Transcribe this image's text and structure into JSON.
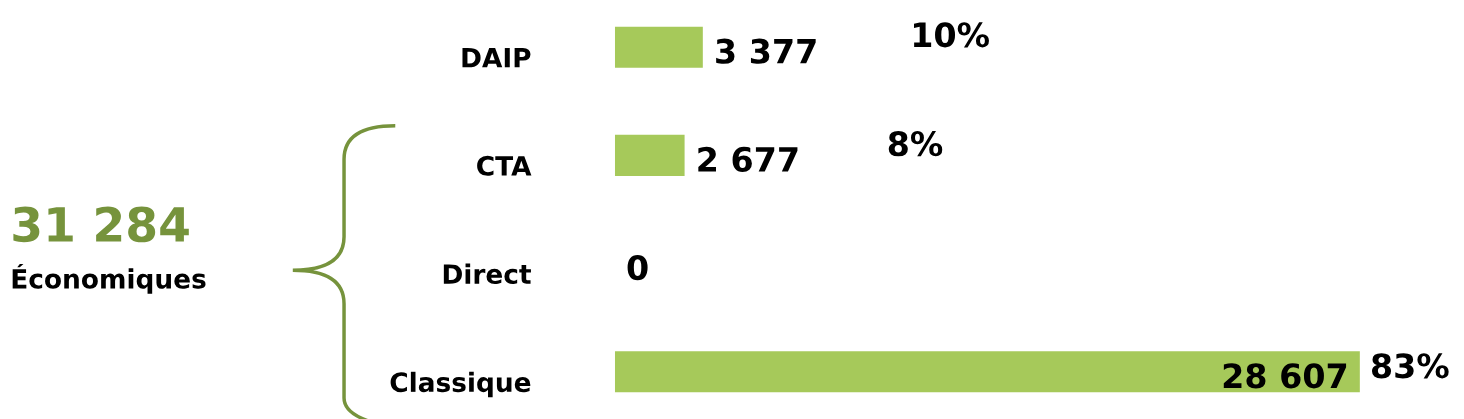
{
  "chart_data": {
    "type": "bar",
    "orientation": "horizontal",
    "categories": [
      "DAIP",
      "CTA",
      "Direct",
      "Classique"
    ],
    "values": [
      3377,
      2677,
      0,
      28607
    ],
    "color": "#a6c95a",
    "value_labels": [
      "3 377",
      "2 677",
      "0",
      "28 607"
    ],
    "annotations": [
      "10%",
      "8%",
      "83%",
      "31 284",
      "Économiques"
    ],
    "grid": false,
    "legend": false,
    "tick_labels": "y"
  }
}
